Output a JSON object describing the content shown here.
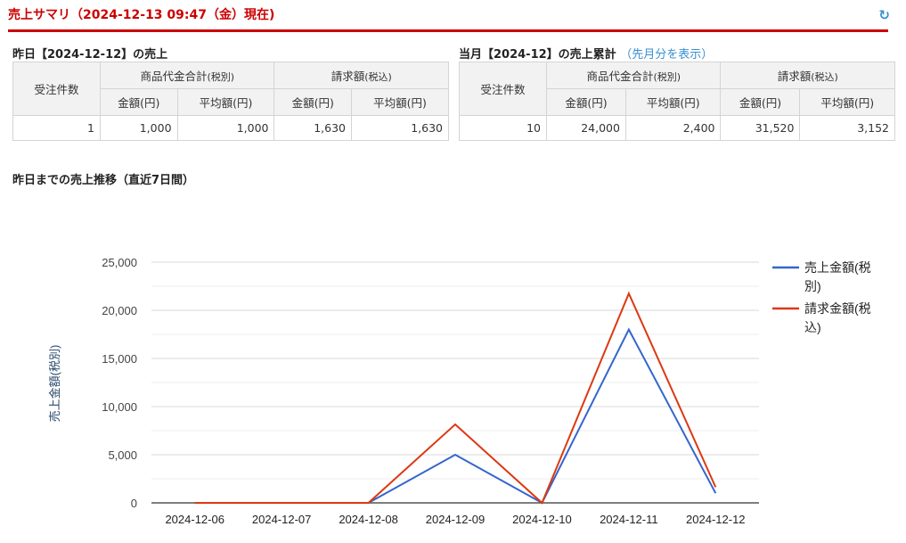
{
  "header": {
    "title": "売上サマリ（2024-12-13 09:47（金）現在)",
    "refresh_icon": "refresh-icon"
  },
  "yesterday": {
    "heading": "昨日【2024-12-12】の売上",
    "headers": {
      "orders": "受注件数",
      "goods_total": "商品代金合計",
      "goods_total_sub": "(税別)",
      "billing": "請求額",
      "billing_sub": "(税込)",
      "amount": "金額(円)",
      "average": "平均額(円)"
    },
    "values": [
      "1",
      "1,000",
      "1,000",
      "1,630",
      "1,630"
    ]
  },
  "month": {
    "heading": "当月【2024-12】の売上累計",
    "link": "（先月分を表示）",
    "headers": {
      "orders": "受注件数",
      "goods_total": "商品代金合計",
      "goods_total_sub": "(税別)",
      "billing": "請求額",
      "billing_sub": "(税込)",
      "amount": "金額(円)",
      "average": "平均額(円)"
    },
    "values": [
      "10",
      "24,000",
      "2,400",
      "31,520",
      "3,152"
    ]
  },
  "chart_heading": "昨日までの売上推移（直近7日間）",
  "chart_data": {
    "type": "line",
    "categories": [
      "2024-12-06",
      "2024-12-07",
      "2024-12-08",
      "2024-12-09",
      "2024-12-10",
      "2024-12-11",
      "2024-12-12"
    ],
    "ylabel": "売上金額(税別)",
    "ylim": [
      0,
      25000
    ],
    "yticks": [
      "0",
      "5,000",
      "10,000",
      "15,000",
      "20,000",
      "25,000"
    ],
    "grid": true,
    "legend": "right",
    "series": [
      {
        "name": "売上金額(税別)",
        "legend_lines": [
          "売上金額(税",
          "別)"
        ],
        "color": "#3366cc",
        "values": [
          0,
          0,
          0,
          5000,
          0,
          18000,
          1000
        ]
      },
      {
        "name": "請求金額(税込)",
        "legend_lines": [
          "請求金額(税",
          "込)"
        ],
        "color": "#dc3912",
        "values": [
          0,
          0,
          0,
          8150,
          0,
          21740,
          1630
        ]
      }
    ]
  }
}
